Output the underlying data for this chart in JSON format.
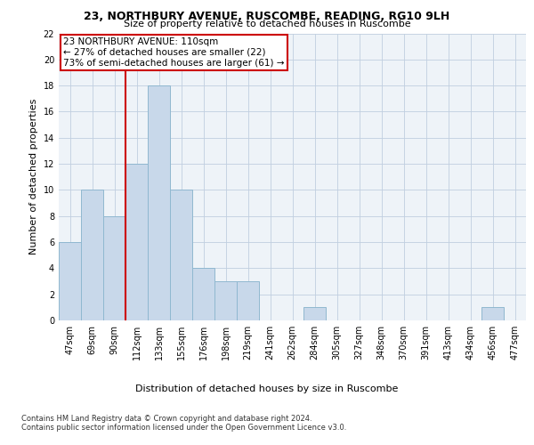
{
  "title1": "23, NORTHBURY AVENUE, RUSCOMBE, READING, RG10 9LH",
  "title2": "Size of property relative to detached houses in Ruscombe",
  "xlabel": "Distribution of detached houses by size in Ruscombe",
  "ylabel": "Number of detached properties",
  "categories": [
    "47sqm",
    "69sqm",
    "90sqm",
    "112sqm",
    "133sqm",
    "155sqm",
    "176sqm",
    "198sqm",
    "219sqm",
    "241sqm",
    "262sqm",
    "284sqm",
    "305sqm",
    "327sqm",
    "348sqm",
    "370sqm",
    "391sqm",
    "413sqm",
    "434sqm",
    "456sqm",
    "477sqm"
  ],
  "values": [
    6,
    10,
    8,
    12,
    18,
    10,
    4,
    3,
    3,
    0,
    0,
    1,
    0,
    0,
    0,
    0,
    0,
    0,
    0,
    1,
    0
  ],
  "bar_color": "#c8d8ea",
  "bar_edgecolor": "#90b8d0",
  "ref_line_color": "#cc0000",
  "ref_line_index": 2.5,
  "annotation_text": "23 NORTHBURY AVENUE: 110sqm\n← 27% of detached houses are smaller (22)\n73% of semi-detached houses are larger (61) →",
  "annotation_box_edgecolor": "#cc0000",
  "ylim": [
    0,
    22
  ],
  "yticks": [
    0,
    2,
    4,
    6,
    8,
    10,
    12,
    14,
    16,
    18,
    20,
    22
  ],
  "footer1": "Contains HM Land Registry data © Crown copyright and database right 2024.",
  "footer2": "Contains public sector information licensed under the Open Government Licence v3.0.",
  "bg_color": "#eef3f8",
  "grid_color": "#c0cfe0",
  "title1_fontsize": 9,
  "title2_fontsize": 8,
  "ylabel_fontsize": 8,
  "xlabel_fontsize": 8,
  "tick_fontsize": 7,
  "footer_fontsize": 6,
  "ann_fontsize": 7.5
}
